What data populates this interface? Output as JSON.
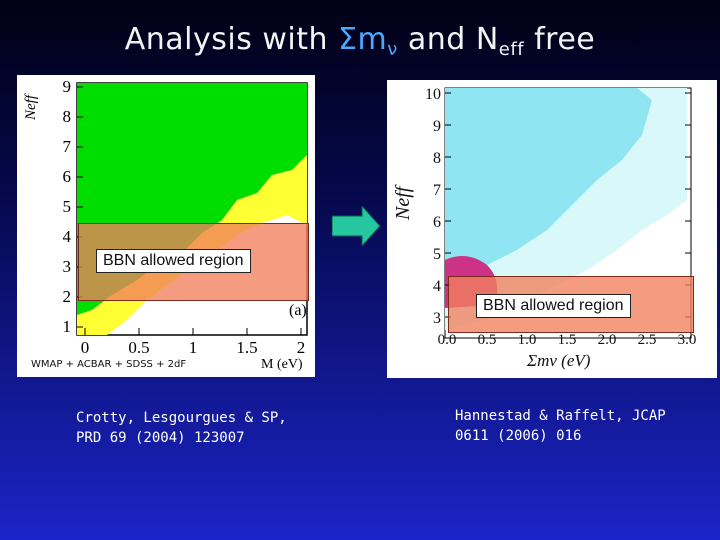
{
  "slide": {
    "title_prefix": "Analysis with ",
    "title_sigma": "Σm",
    "title_nu": "ν",
    "title_mid": " and N",
    "title_eff": "eff",
    "title_suffix": " free"
  },
  "left_plot": {
    "y_axis_label": "Neff",
    "y_ticks": [
      "9",
      "8",
      "7",
      "6",
      "5",
      "4",
      "3",
      "2",
      "1"
    ],
    "x_ticks": [
      "0",
      "0.5",
      "1",
      "1.5",
      "2"
    ],
    "x_axis_label": "M (eV)",
    "panel_tag": "(a)",
    "bbn_label": "BBN allowed region",
    "footer_text": "WMAP + ACBAR + SDSS + 2dF"
  },
  "right_plot": {
    "y_axis_label": "Neff",
    "y_ticks": [
      "10",
      "9",
      "8",
      "7",
      "6",
      "5",
      "4",
      "3"
    ],
    "x_ticks": [
      "0.0",
      "0.5",
      "1.0",
      "1.5",
      "2.0",
      "2.5",
      "3.0"
    ],
    "x_axis_label": "Σmν (eV)",
    "bbn_label": "BBN allowed region"
  },
  "captions": {
    "left_line1": "Crotty, Lesgourgues & SP,",
    "left_line2": "PRD 69 (2004) 123007",
    "right_line1": "Hannestad & Raffelt, JCAP",
    "right_line2": "0611 (2006) 016"
  },
  "colors": {
    "left_outer": "#ffff33",
    "left_inner": "#00dd00",
    "right_outer": "#d8f8fa",
    "right_inner": "#8fe6f2",
    "right_bottom": "#cc3388",
    "bbn": "#f2805c",
    "arrow": "#26c6a0"
  }
}
